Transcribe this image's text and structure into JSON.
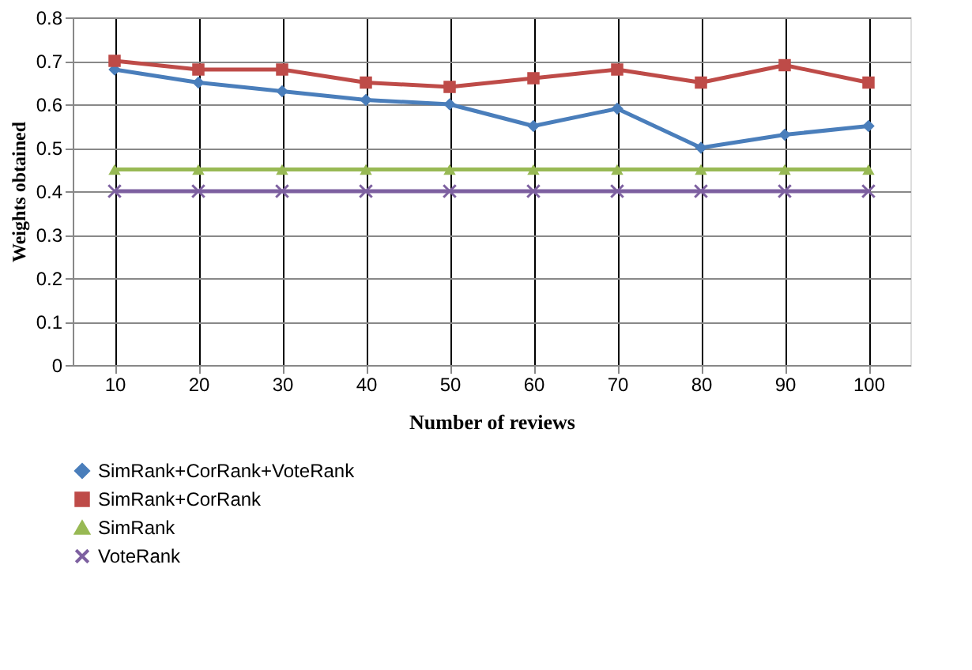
{
  "chart_data": {
    "type": "line",
    "xlabel": "Number of reviews",
    "ylabel": "Weights obtained",
    "categories": [
      "10",
      "20",
      "30",
      "40",
      "50",
      "60",
      "70",
      "80",
      "90",
      "100"
    ],
    "series": [
      {
        "name": "SimRank+CorRank+VoteRank",
        "color": "#4a7ebb",
        "marker": "diamond",
        "values": [
          0.68,
          0.65,
          0.63,
          0.61,
          0.6,
          0.55,
          0.59,
          0.5,
          0.53,
          0.55
        ]
      },
      {
        "name": "SimRank+CorRank",
        "color": "#be4b48",
        "marker": "square",
        "values": [
          0.7,
          0.68,
          0.68,
          0.65,
          0.64,
          0.66,
          0.68,
          0.65,
          0.69,
          0.65
        ]
      },
      {
        "name": "SimRank",
        "color": "#98b954",
        "marker": "triangle",
        "values": [
          0.45,
          0.45,
          0.45,
          0.45,
          0.45,
          0.45,
          0.45,
          0.45,
          0.45,
          0.45
        ]
      },
      {
        "name": "VoteRank",
        "color": "#7d60a0",
        "marker": "cross",
        "values": [
          0.4,
          0.4,
          0.4,
          0.4,
          0.4,
          0.4,
          0.4,
          0.4,
          0.4,
          0.4
        ]
      }
    ],
    "ylim": [
      0,
      0.8
    ],
    "yticks": [
      0,
      0.1,
      0.2,
      0.3,
      0.4,
      0.5,
      0.6,
      0.7,
      0.8
    ],
    "grid": true,
    "legend": "bottom"
  }
}
